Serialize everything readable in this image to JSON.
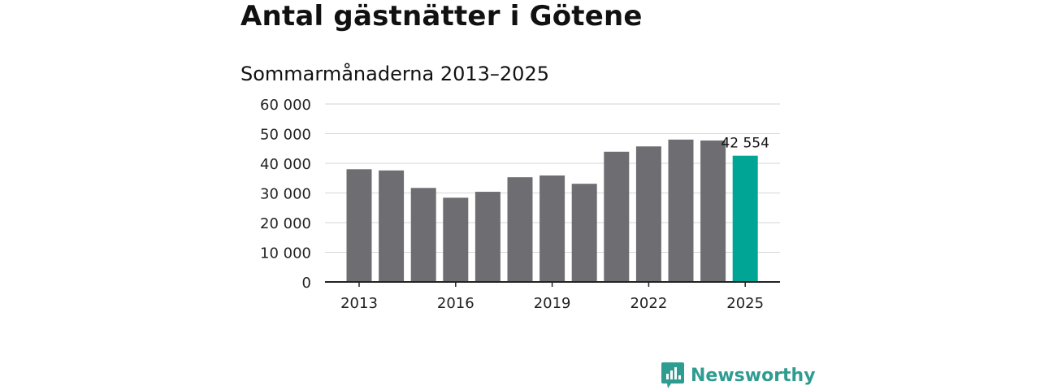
{
  "title": "Antal gästnätter i Götene",
  "subtitle": "Sommarmånaderna 2013–2025",
  "brand": {
    "name": "Newsworthy",
    "icon": "bar-chart-speech-bubble-icon"
  },
  "colors": {
    "bar": "#6e6d72",
    "highlight": "#00a596",
    "grid": "#d6d6d6",
    "axis": "#222222",
    "brand": "#2f9c91"
  },
  "chart_data": {
    "type": "bar",
    "categories": [
      "2013",
      "2014",
      "2015",
      "2016",
      "2017",
      "2018",
      "2019",
      "2020",
      "2021",
      "2022",
      "2023",
      "2024",
      "2025"
    ],
    "values": [
      38000,
      37600,
      31700,
      28400,
      30400,
      35300,
      35900,
      33100,
      43900,
      45700,
      48000,
      47700,
      42554
    ],
    "highlight_index": 12,
    "data_label": {
      "index": 12,
      "text": "42 554"
    },
    "ylim": [
      0,
      60000
    ],
    "yticks": [
      0,
      10000,
      20000,
      30000,
      40000,
      50000,
      60000
    ],
    "ytick_labels": [
      "0",
      "10 000",
      "20 000",
      "30 000",
      "40 000",
      "50 000",
      "60 000"
    ],
    "xtick_labels": [
      "2013",
      "2016",
      "2019",
      "2022",
      "2025"
    ],
    "xlabel": "",
    "ylabel": "",
    "grid": true
  }
}
